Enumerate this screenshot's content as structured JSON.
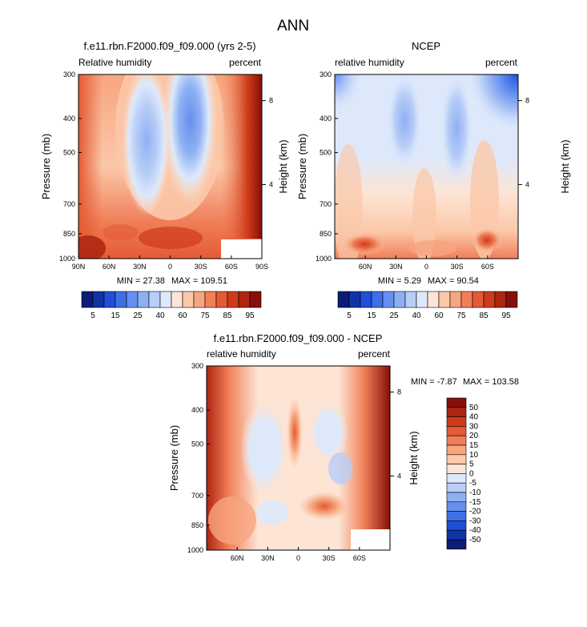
{
  "figure": {
    "title": "ANN"
  },
  "chart_data": [
    {
      "type": "heatmap",
      "title": "f.e11.rbn.F2000.f09_f09.000 (yrs 2-5)",
      "left_subtitle": "Relative humidity",
      "right_subtitle": "percent",
      "ylabel": "Pressure (mb)",
      "right_ylabel": "Height (km)",
      "x_ticks": [
        "90N",
        "60N",
        "30N",
        "0",
        "30S",
        "60S",
        "90S"
      ],
      "y_ticks": [
        "300",
        "400",
        "500",
        "700",
        "850",
        "1000"
      ],
      "right_ticks": [
        "8",
        "4"
      ],
      "min_label": "MIN = 27.38",
      "max_label": "MAX = 109.51",
      "min": 27.38,
      "max": 109.51,
      "colorbar_labels": [
        "5",
        "15",
        "25",
        "40",
        "60",
        "75",
        "85",
        "95"
      ]
    },
    {
      "type": "heatmap",
      "title": "NCEP",
      "left_subtitle": "relative humidity",
      "right_subtitle": "percent",
      "ylabel": "Pressure (mb)",
      "right_ylabel": "Height (km)",
      "x_ticks": [
        "60N",
        "30N",
        "0",
        "30S",
        "60S"
      ],
      "y_ticks": [
        "300",
        "400",
        "500",
        "700",
        "850",
        "1000"
      ],
      "right_ticks": [
        "8",
        "4"
      ],
      "min_label": "MIN =  5.29",
      "max_label": "MAX = 90.54",
      "min": 5.29,
      "max": 90.54,
      "colorbar_labels": [
        "5",
        "15",
        "25",
        "40",
        "60",
        "75",
        "85",
        "95"
      ]
    },
    {
      "type": "heatmap",
      "title": "f.e11.rbn.F2000.f09_f09.000 - NCEP",
      "left_subtitle": "relative humidity",
      "right_subtitle": "percent",
      "ylabel": "Pressure (mb)",
      "right_ylabel": "Height (km)",
      "x_ticks": [
        "60N",
        "30N",
        "0",
        "30S",
        "60S"
      ],
      "y_ticks": [
        "300",
        "400",
        "500",
        "700",
        "850",
        "1000"
      ],
      "right_ticks": [
        "8",
        "4"
      ],
      "min_label": "MIN =  -7.87",
      "max_label": "MAX = 103.58",
      "min": -7.87,
      "max": 103.58,
      "colorbar_labels": [
        "50",
        "40",
        "30",
        "20",
        "15",
        "10",
        "5",
        "0",
        "-5",
        "-10",
        "-15",
        "-20",
        "-30",
        "-40",
        "-50"
      ]
    }
  ],
  "palettes": {
    "rh": [
      "#0d1c75",
      "#1233a8",
      "#1f4fd6",
      "#3f6fe8",
      "#6690f0",
      "#8eb0f3",
      "#b8cdf7",
      "#dde9fb",
      "#fde4d4",
      "#fbc8a9",
      "#f7a57f",
      "#f07f58",
      "#e45a34",
      "#cf3b1a",
      "#ad2511",
      "#861008"
    ],
    "diff": [
      "#861008",
      "#ad2511",
      "#cf3b1a",
      "#e45a34",
      "#f07f58",
      "#f7a57f",
      "#fbc8a9",
      "#fde4d4",
      "#dde9fb",
      "#b8cdf7",
      "#8eb0f3",
      "#6690f0",
      "#3f6fe8",
      "#1f4fd6",
      "#1233a8",
      "#0d1c75"
    ]
  }
}
